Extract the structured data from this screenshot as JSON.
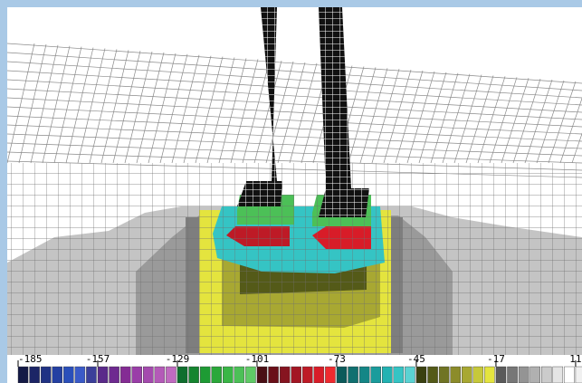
{
  "colorbar": {
    "lim": [
      -185,
      15
    ],
    "ticks": [
      -185,
      -157,
      -129,
      -101,
      -73,
      -45,
      -17,
      11
    ],
    "colors": [
      "#141a46",
      "#1c2566",
      "#203284",
      "#2440a2",
      "#2a4fba",
      "#3a5ac8",
      "#3b3f9a",
      "#5a2a8a",
      "#6e2a90",
      "#842c94",
      "#9a3ea8",
      "#a44aae",
      "#b45ab8",
      "#c06ac0",
      "#0f6e2e",
      "#15852f",
      "#1e9b34",
      "#2aa83a",
      "#39b646",
      "#4cc057",
      "#5fca66",
      "#4a0e14",
      "#6a0f18",
      "#861420",
      "#a31624",
      "#be1a26",
      "#d81c28",
      "#ef2a2f",
      "#0c5a5a",
      "#107070",
      "#148686",
      "#1a9c9c",
      "#22b2b2",
      "#35c4c4",
      "#5ad2d2",
      "#3a4010",
      "#545a18",
      "#707424",
      "#8c8c2a",
      "#a8a832",
      "#c6c83a",
      "#e4e43e",
      "#5a5a5a",
      "#777777",
      "#949494",
      "#b0b0b0",
      "#cbcbcb",
      "#e4e4e4",
      "#ffffff",
      "#f0f0f0"
    ]
  }
}
